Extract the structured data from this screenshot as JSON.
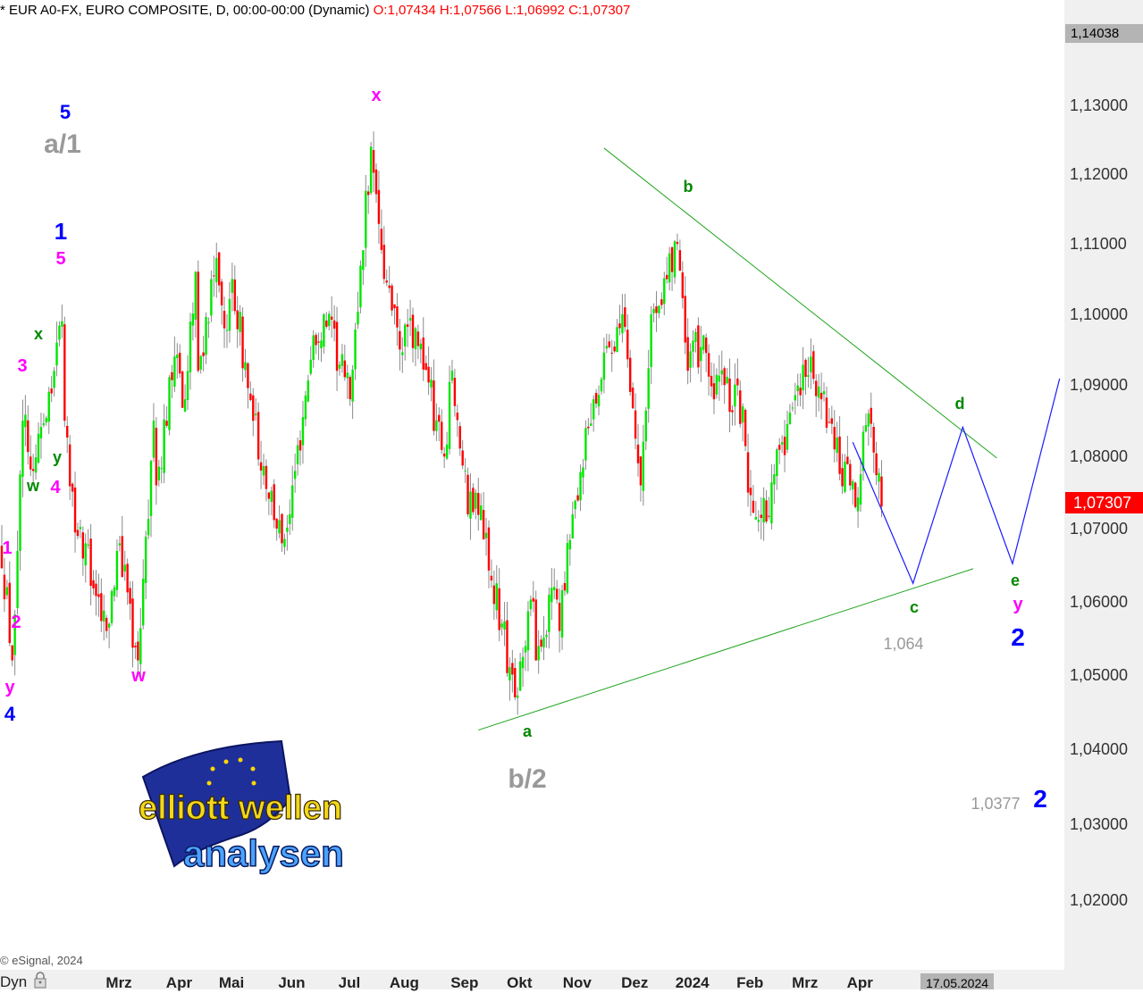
{
  "header": {
    "symbol_text": "* EUR A0-FX, EURO COMPOSITE, D, 00:00-00:00 (Dynamic)",
    "ohlc_text": "O:1,07434 H:1,07566 L:1,06992 C:1,07307"
  },
  "footer": {
    "copyright": "© eSignal, 2024",
    "mode_label": "Dyn",
    "lock_icon": "lock-icon",
    "cursor_date": "17.05.2024"
  },
  "colors": {
    "up_candle": "#00e600",
    "down_candle": "#ff0000",
    "trendline": "#1fa51f",
    "projection": "#1a1aff",
    "current_price_box": "#ff0000"
  },
  "chart_data": {
    "type": "candlestick",
    "title": "",
    "y_scale": "log",
    "ylim": [
      1.0125,
      1.1435
    ],
    "grid": false,
    "y_ticks": [
      "1,13000",
      "1,12000",
      "1,11000",
      "1,10000",
      "1,09000",
      "1,08000",
      "1,07000",
      "1,06000",
      "1,05000",
      "1,04000",
      "1,03000",
      "1,02000"
    ],
    "y_tick_values": [
      1.13,
      1.12,
      1.11,
      1.1,
      1.09,
      1.08,
      1.07,
      1.06,
      1.05,
      1.04,
      1.03,
      1.02
    ],
    "y_top_label": "1,14038",
    "last_price_label": "1,07307",
    "last_price": 1.07307,
    "x_ticks": [
      {
        "label": "Mrz",
        "date": "2023-03-01"
      },
      {
        "label": "Apr",
        "date": "2023-04-03"
      },
      {
        "label": "Mai",
        "date": "2023-05-01"
      },
      {
        "label": "Jun",
        "date": "2023-06-01"
      },
      {
        "label": "Jul",
        "date": "2023-07-03"
      },
      {
        "label": "Aug",
        "date": "2023-08-01"
      },
      {
        "label": "Sep",
        "date": "2023-09-01"
      },
      {
        "label": "Okt",
        "date": "2023-10-02"
      },
      {
        "label": "Nov",
        "date": "2023-11-01"
      },
      {
        "label": "Dez",
        "date": "2023-12-01"
      },
      {
        "label": "2024",
        "date": "2024-01-02"
      },
      {
        "label": "Feb",
        "date": "2024-02-01"
      },
      {
        "label": "Mrz",
        "date": "2024-03-01"
      },
      {
        "label": "Apr",
        "date": "2024-04-01"
      }
    ],
    "price_path_pivots": [
      [
        "2023-01-02",
        1.067
      ],
      [
        "2023-01-06",
        1.052
      ],
      [
        "2023-01-12",
        1.085
      ],
      [
        "2023-01-18",
        1.078
      ],
      [
        "2023-02-02",
        1.099
      ],
      [
        "2023-02-03",
        1.085
      ],
      [
        "2023-02-10",
        1.069
      ],
      [
        "2023-02-15",
        1.068
      ],
      [
        "2023-02-27",
        1.056
      ],
      [
        "2023-03-06",
        1.068
      ],
      [
        "2023-03-15",
        1.052
      ],
      [
        "2023-03-23",
        1.085
      ],
      [
        "2023-03-24",
        1.076
      ],
      [
        "2023-04-04",
        1.094
      ],
      [
        "2023-04-10",
        1.088
      ],
      [
        "2023-04-14",
        1.106
      ],
      [
        "2023-04-17",
        1.092
      ],
      [
        "2023-04-26",
        1.108
      ],
      [
        "2023-05-01",
        1.098
      ],
      [
        "2023-05-04",
        1.105
      ],
      [
        "2023-05-16",
        1.085
      ],
      [
        "2023-05-31",
        1.068
      ],
      [
        "2023-06-05",
        1.072
      ],
      [
        "2023-06-07",
        1.078
      ],
      [
        "2023-06-16",
        1.097
      ],
      [
        "2023-06-22",
        1.1
      ],
      [
        "2023-07-06",
        1.088
      ],
      [
        "2023-07-18",
        1.124
      ],
      [
        "2023-07-25",
        1.105
      ],
      [
        "2023-08-02",
        1.095
      ],
      [
        "2023-08-10",
        1.098
      ],
      [
        "2023-08-25",
        1.08
      ],
      [
        "2023-08-30",
        1.092
      ],
      [
        "2023-09-07",
        1.072
      ],
      [
        "2023-09-12",
        1.075
      ],
      [
        "2023-09-26",
        1.057
      ],
      [
        "2023-10-03",
        1.047
      ],
      [
        "2023-10-12",
        1.06
      ],
      [
        "2023-10-13",
        1.052
      ],
      [
        "2023-10-24",
        1.062
      ],
      [
        "2023-10-26",
        1.056
      ],
      [
        "2023-11-02",
        1.072
      ],
      [
        "2023-11-14",
        1.088
      ],
      [
        "2023-11-29",
        1.1
      ],
      [
        "2023-12-08",
        1.076
      ],
      [
        "2023-12-14",
        1.1
      ],
      [
        "2023-12-28",
        1.11
      ],
      [
        "2024-01-03",
        1.092
      ],
      [
        "2024-01-11",
        1.097
      ],
      [
        "2024-01-17",
        1.088
      ],
      [
        "2024-01-23",
        1.09
      ],
      [
        "2024-02-01",
        1.087
      ],
      [
        "2024-02-05",
        1.075
      ],
      [
        "2024-02-14",
        1.071
      ],
      [
        "2024-02-22",
        1.082
      ],
      [
        "2024-03-08",
        1.094
      ],
      [
        "2024-03-14",
        1.088
      ],
      [
        "2024-03-21",
        1.081
      ],
      [
        "2024-04-02",
        1.073
      ],
      [
        "2024-04-09",
        1.086
      ],
      [
        "2024-04-16",
        1.07307
      ]
    ],
    "trendlines": [
      {
        "from": [
          "2023-11-20",
          1.1238
        ],
        "to": [
          "2024-06-17",
          1.0798
        ]
      },
      {
        "from": [
          "2023-09-13",
          1.0426
        ],
        "to": [
          "2024-06-04",
          1.0645
        ]
      }
    ],
    "projection": [
      [
        "2024-04-01",
        1.082
      ],
      [
        "2024-05-02",
        1.0625
      ],
      [
        "2024-05-29",
        1.0841
      ],
      [
        "2024-06-25",
        1.0652
      ],
      [
        "2024-07-19",
        1.0909
      ]
    ],
    "annotations": [
      {
        "text": "5",
        "color": "#0000ff"
      },
      {
        "text": "a/1",
        "color": "#999999"
      },
      {
        "text": "1",
        "color": "#0000ff"
      },
      {
        "text": "5",
        "color": "#ff00ff"
      },
      {
        "text": "x",
        "color": "#008800"
      },
      {
        "text": "3",
        "color": "#ff00ff"
      },
      {
        "text": "y",
        "color": "#008800"
      },
      {
        "text": "w",
        "color": "#008800"
      },
      {
        "text": "4",
        "color": "#ff00ff"
      },
      {
        "text": "1",
        "color": "#ff00ff"
      },
      {
        "text": "2",
        "color": "#ff00ff"
      },
      {
        "text": "y",
        "color": "#ff00ff"
      },
      {
        "text": "4",
        "color": "#0000ff"
      },
      {
        "text": "w",
        "color": "#ff00ff"
      },
      {
        "text": "x",
        "color": "#ff00ff"
      },
      {
        "text": "b",
        "color": "#008800"
      },
      {
        "text": "d",
        "color": "#008800"
      },
      {
        "text": "c",
        "color": "#008800"
      },
      {
        "text": "1,064",
        "color": "#999999"
      },
      {
        "text": "e",
        "color": "#008800"
      },
      {
        "text": "y",
        "color": "#ff00ff"
      },
      {
        "text": "2",
        "color": "#0000ff"
      },
      {
        "text": "a",
        "color": "#008800"
      },
      {
        "text": "b/2",
        "color": "#999999"
      },
      {
        "text": "1,0377",
        "color": "#999999"
      },
      {
        "text": "2",
        "color": "#0000ff"
      }
    ]
  },
  "logo": {
    "line1": "elliott wellen",
    "line2": "analysen"
  }
}
